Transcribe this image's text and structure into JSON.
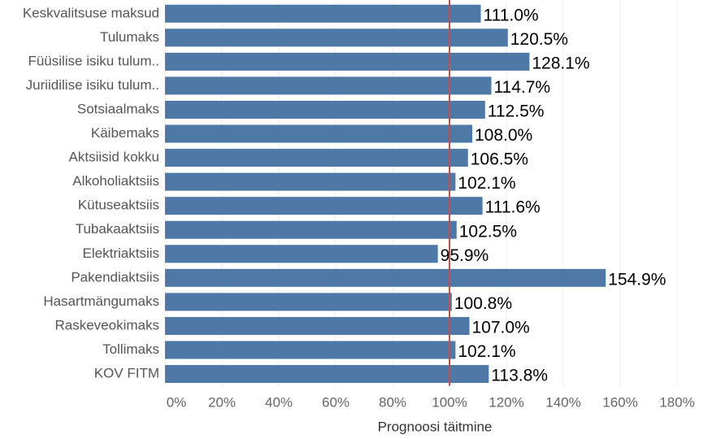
{
  "chart_data": {
    "type": "hbar",
    "x_label": "Prognoosi täitmine",
    "categories": [
      "Keskvalitsuse maksud",
      "Tulumaks",
      "Füüsilise isiku tulum..",
      "Juriidilise isiku tulum..",
      "Sotsiaalmaks",
      "Käibemaks",
      "Aktsiisid kokku",
      "Alkoholiaktsiis",
      "Kütuseaktsiis",
      "Tubakaaktsiis",
      "Elektriaktsiis",
      "Pakendiaktsiis",
      "Hasartmängumaks",
      "Raskeveokimaks",
      "Tollimaks",
      "KOV FITM"
    ],
    "values": [
      111.0,
      120.5,
      128.1,
      114.7,
      112.5,
      108.0,
      106.5,
      102.1,
      111.6,
      102.5,
      95.9,
      154.9,
      100.8,
      107.0,
      102.1,
      113.8
    ],
    "value_labels": [
      "111.0%",
      "120.5%",
      "128.1%",
      "114.7%",
      "112.5%",
      "108.0%",
      "106.5%",
      "102.1%",
      "111.6%",
      "102.5%",
      "95.9%",
      "154.9%",
      "100.8%",
      "107.0%",
      "102.1%",
      "113.8%"
    ],
    "color": "#4e79a7",
    "xlim": [
      0,
      180
    ],
    "xticks": [
      {
        "value": 0,
        "label": "0%"
      },
      {
        "value": 20,
        "label": "20%"
      },
      {
        "value": 40,
        "label": "40%"
      },
      {
        "value": 60,
        "label": "60%"
      },
      {
        "value": 80,
        "label": "80%"
      },
      {
        "value": 100,
        "label": "100%"
      },
      {
        "value": 120,
        "label": "120%"
      },
      {
        "value": 140,
        "label": "140%"
      },
      {
        "value": 160,
        "label": "160%"
      },
      {
        "value": 180,
        "label": "180%"
      }
    ],
    "grid": true,
    "reference_line": {
      "value": 100,
      "color": "#c0504d"
    }
  }
}
